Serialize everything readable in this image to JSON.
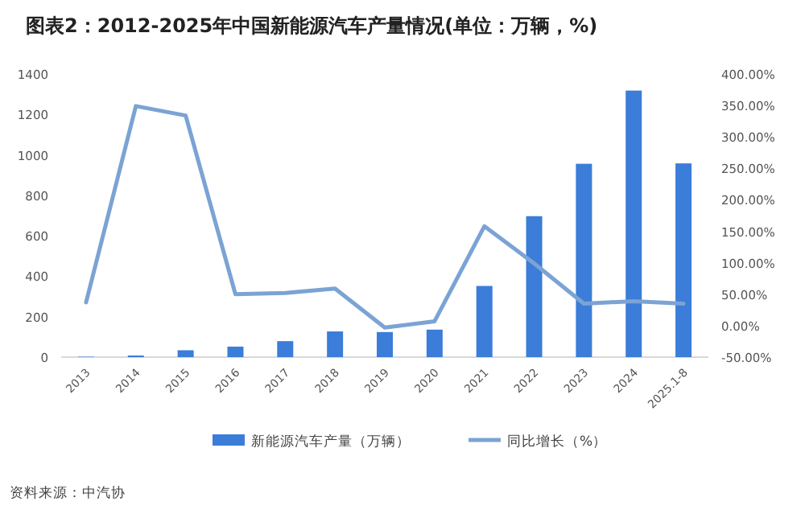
{
  "chart_data": {
    "type": "bar",
    "title": "图表2：2012-2025年中国新能源汽车产量情况(单位：万辆，%)",
    "categories": [
      "2013",
      "2014",
      "2015",
      "2016",
      "2017",
      "2018",
      "2019",
      "2020",
      "2021",
      "2022",
      "2023",
      "2024",
      "2025.1-8"
    ],
    "series": [
      {
        "name": "新能源汽车产量（万辆）",
        "color": "#3b7dd8",
        "values": [
          2,
          8,
          34,
          52,
          79,
          127,
          124,
          136,
          352,
          697,
          956,
          1318,
          958
        ]
      },
      {
        "name": "同比增长（%）",
        "type": "line",
        "axis": "y2",
        "color": "#7ba3d4",
        "values": [
          37,
          349,
          334,
          50,
          52,
          59,
          -3,
          7,
          158,
          99,
          35,
          39,
          35
        ]
      }
    ],
    "ylim": [
      0,
      1400
    ],
    "yticks": [
      0,
      200,
      400,
      600,
      800,
      1000,
      1200,
      1400
    ],
    "y2lim": [
      -50,
      400
    ],
    "y2ticks": [
      {
        "value": -50,
        "label": "-50.00%"
      },
      {
        "value": 0,
        "label": "0.00%"
      },
      {
        "value": 50,
        "label": "50.00%"
      },
      {
        "value": 100,
        "label": "100.00%"
      },
      {
        "value": 150,
        "label": "150.00%"
      },
      {
        "value": 200,
        "label": "200.00%"
      },
      {
        "value": 250,
        "label": "250.00%"
      },
      {
        "value": 300,
        "label": "300.00%"
      },
      {
        "value": 350,
        "label": "350.00%"
      },
      {
        "value": 400,
        "label": "400.00%"
      }
    ],
    "legend": "bottom",
    "annotations": [
      "资料来源：中汽协"
    ]
  }
}
